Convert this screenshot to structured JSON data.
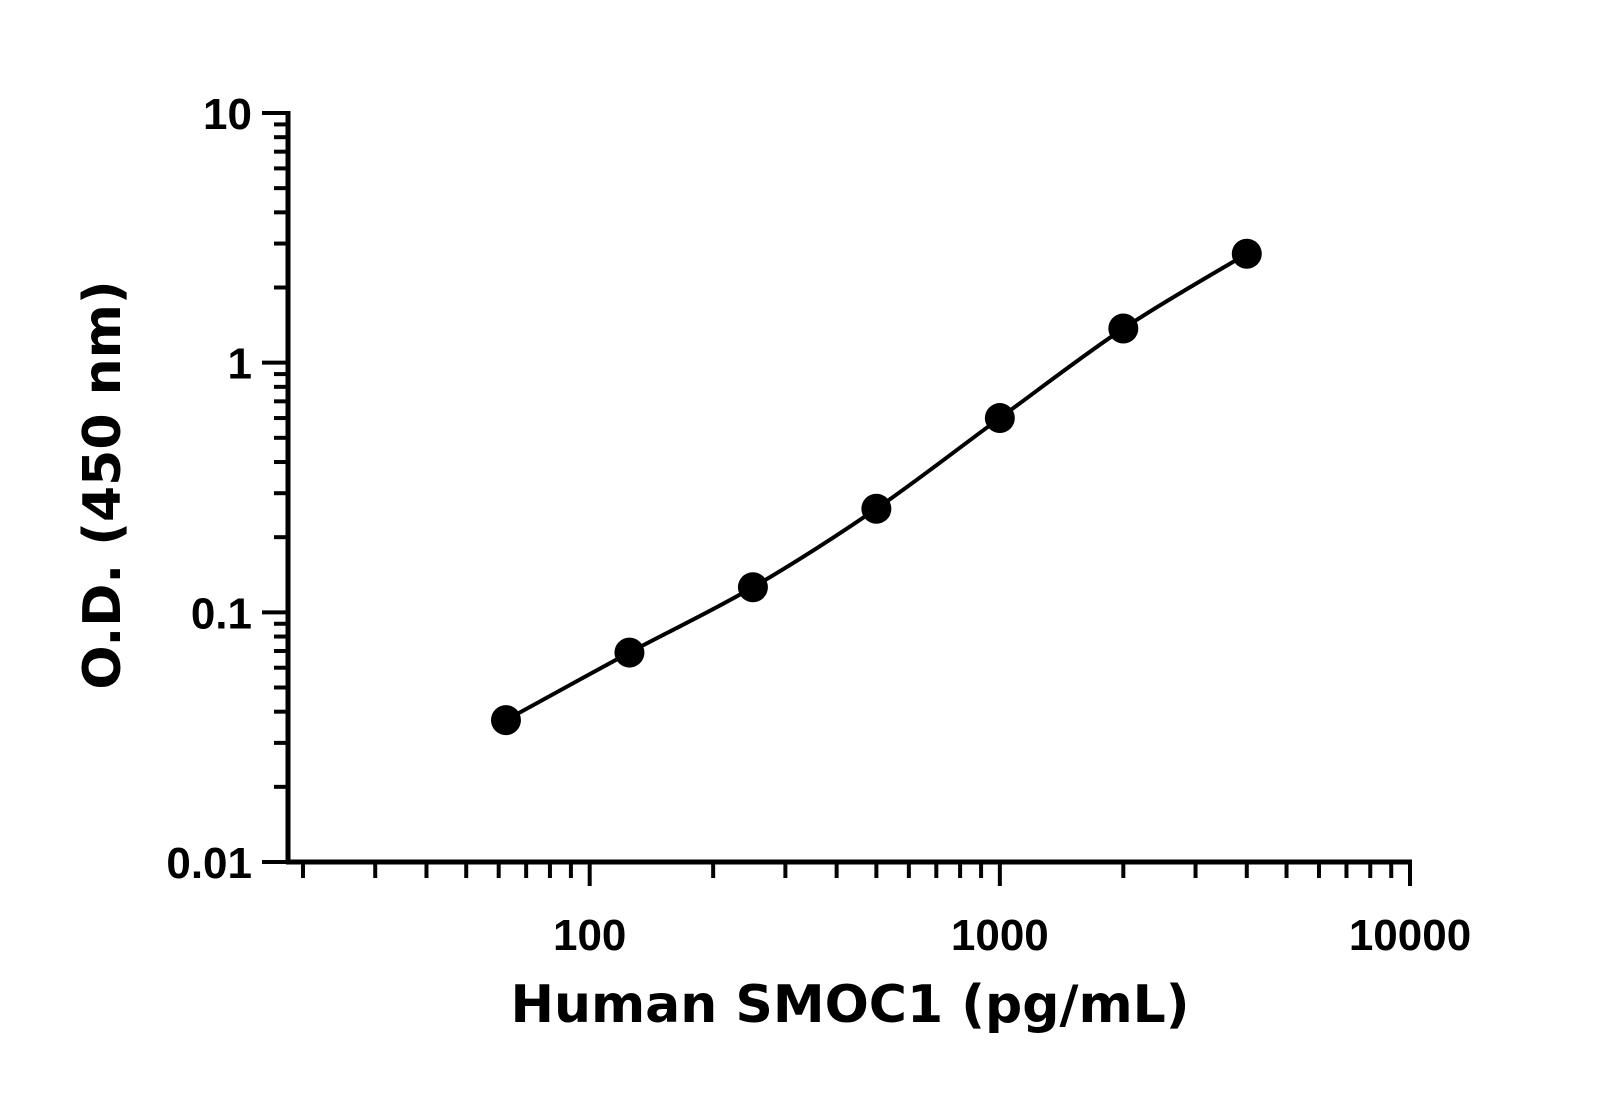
{
  "chart_data": {
    "type": "line",
    "title": "",
    "xlabel": "Human SMOC1 (pg/mL)",
    "ylabel": "O.D. (450 nm)",
    "x_scale": "log",
    "y_scale": "log",
    "xlim": [
      20,
      10000
    ],
    "ylim": [
      0.01,
      10
    ],
    "x_ticks": [
      "100",
      "1000",
      "10000"
    ],
    "y_ticks": [
      "0.01",
      "0.1",
      "1",
      "10"
    ],
    "grid": false,
    "legend": "none",
    "color": "#000000",
    "series": [
      {
        "x": [
          62.5,
          125,
          250,
          500,
          1000,
          2000,
          4000
        ],
        "y": [
          0.037,
          0.069,
          0.126,
          0.26,
          0.6,
          1.37,
          2.73
        ]
      }
    ]
  }
}
